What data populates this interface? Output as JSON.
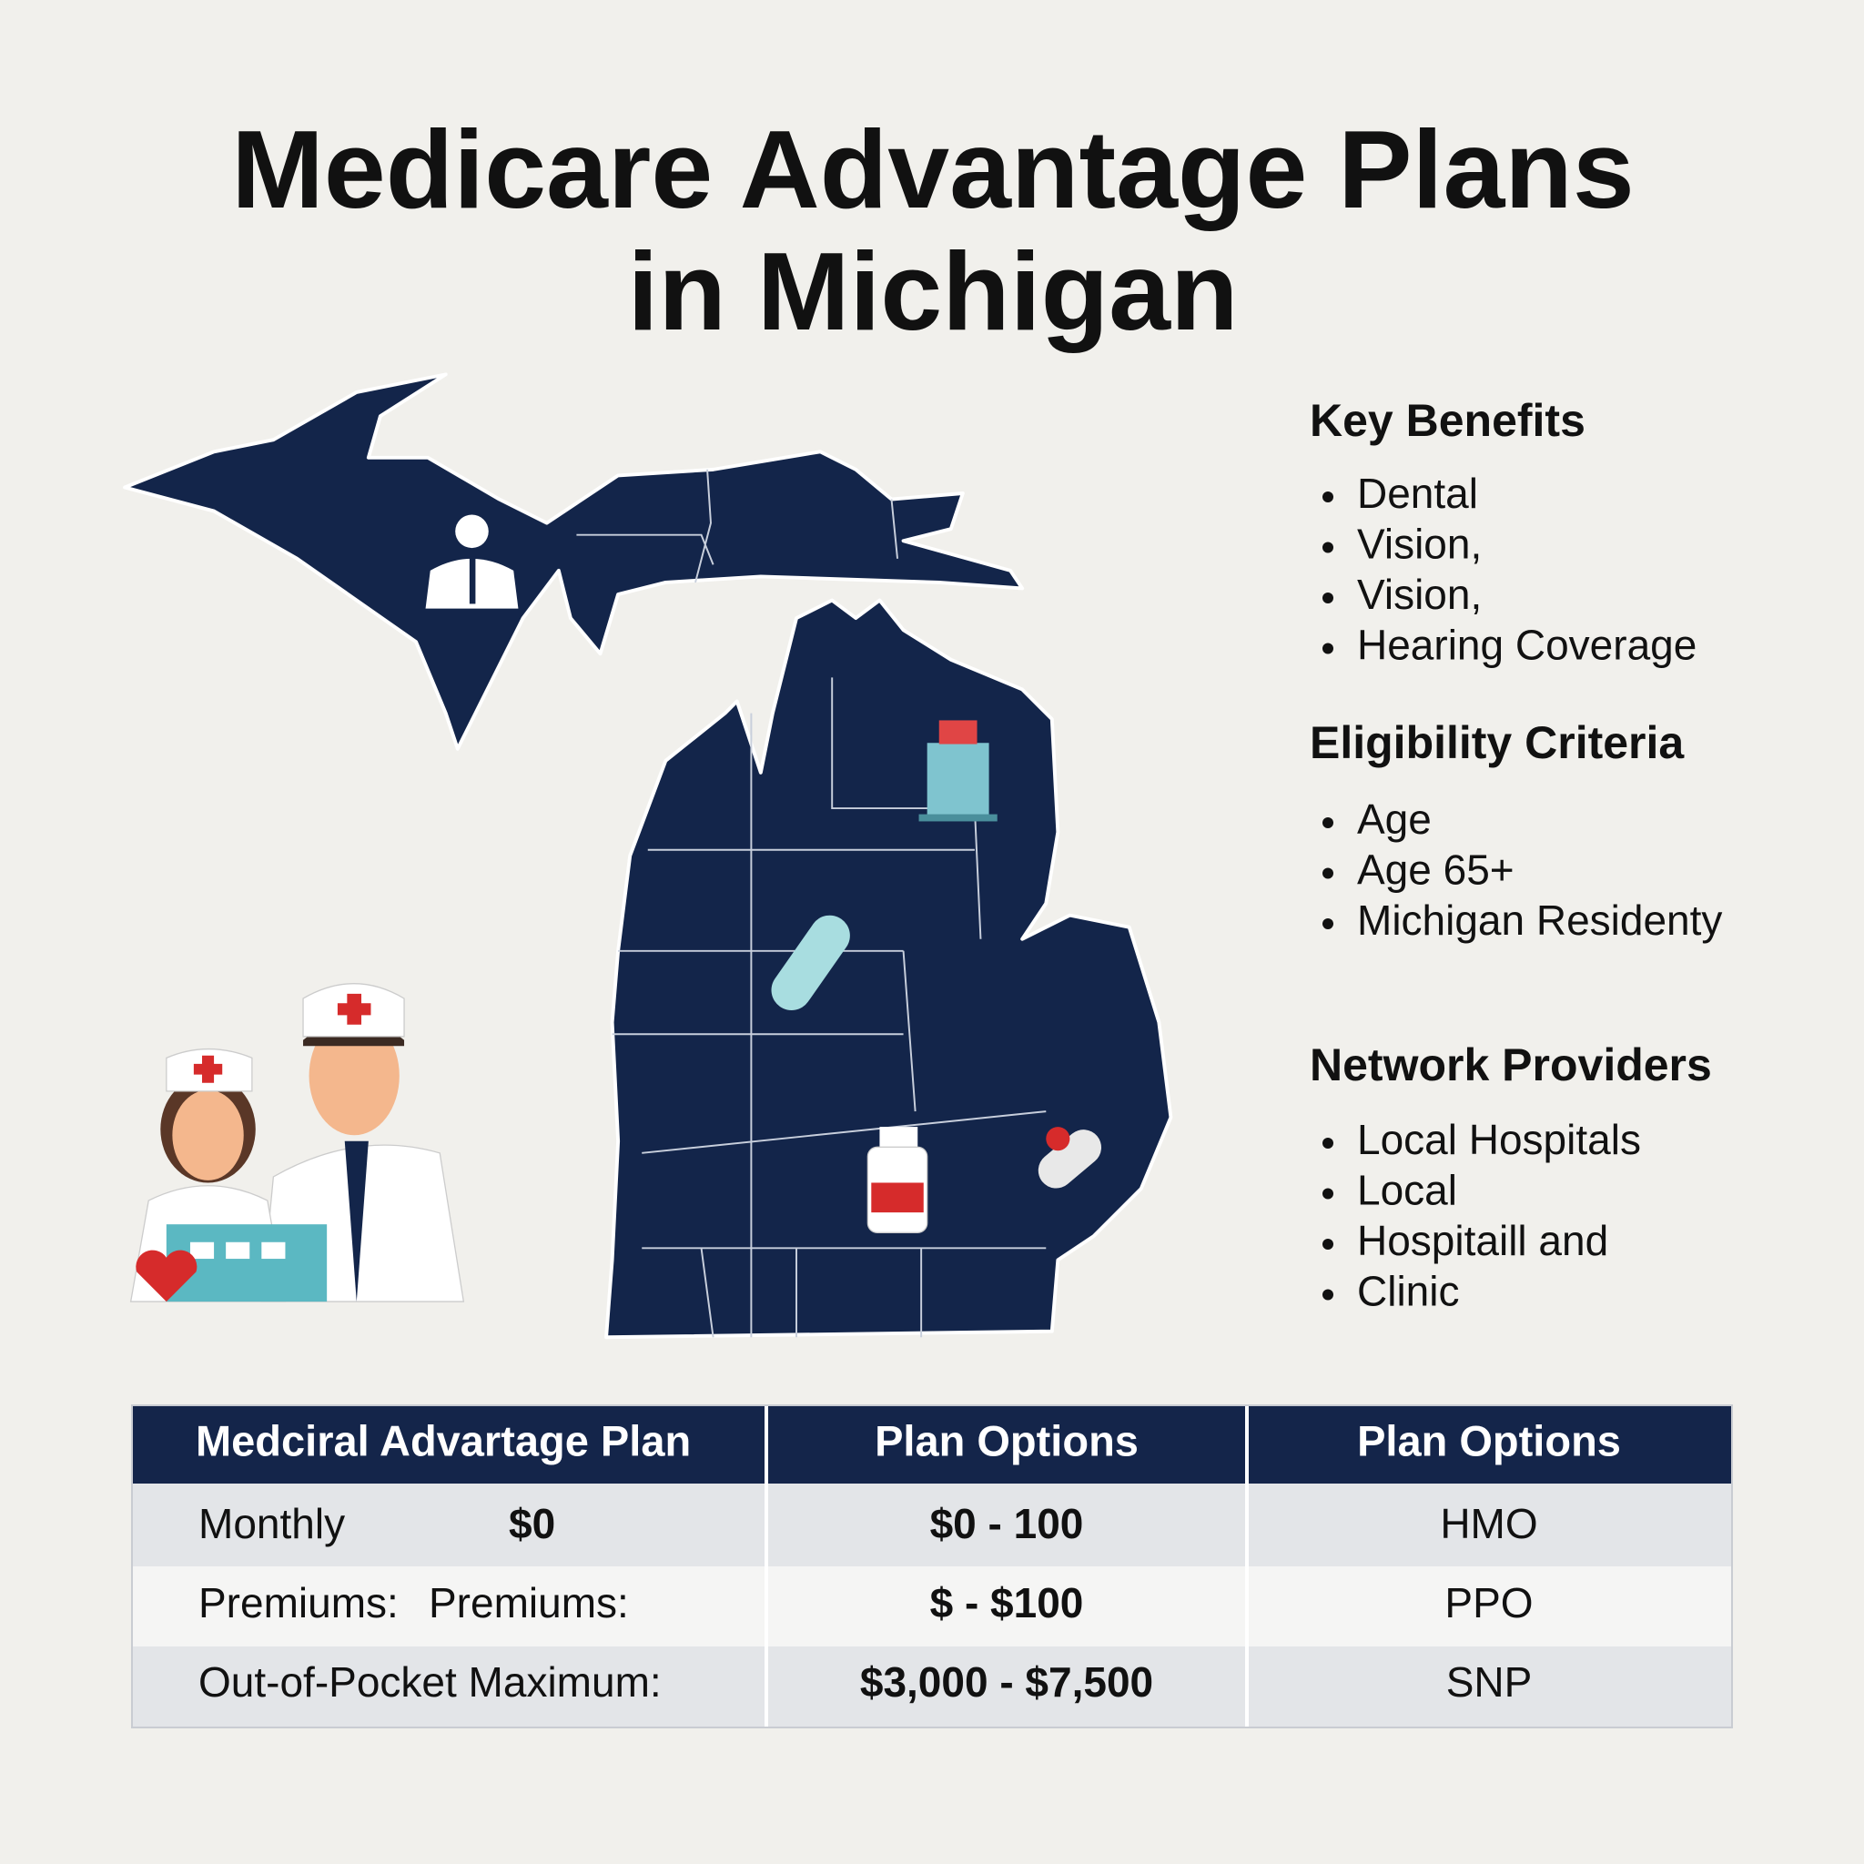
{
  "header": {
    "title_lines": [
      "Medicare Advantage Plans",
      "in Michigan"
    ]
  },
  "sections": [
    {
      "heading": "Key Benefits",
      "items": [
        "Dental",
        "Vision,",
        "Vision,",
        "Hearing Coverage"
      ]
    },
    {
      "heading": "Eligibility Criteria",
      "items": [
        "Age",
        "Age 65+",
        "Michigan Residenty"
      ]
    },
    {
      "heading": "Network Providers",
      "items": [
        "Local Hospitals",
        "Local",
        "Hospitaill   and",
        "Clinic"
      ]
    }
  ],
  "table": {
    "headers": [
      "Medciral Advartage Plan",
      "Plan Options",
      "Plan Options"
    ],
    "rows": [
      {
        "label": [
          "Monthly",
          "$0"
        ],
        "range": "$0 - 100",
        "type": "HMO"
      },
      {
        "label": [
          "Premiums:",
          "Premiums:"
        ],
        "range": "$ - $100",
        "type": "PPO"
      },
      {
        "label": [
          "Out-of-Pocket Maximum:"
        ],
        "range": "$3,000 - $7,500",
        "type": "SNP"
      }
    ]
  }
}
